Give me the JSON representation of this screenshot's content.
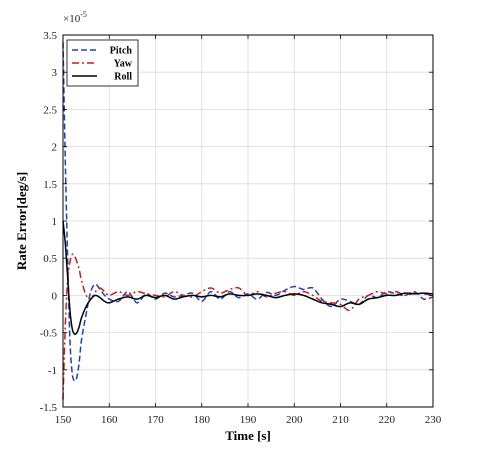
{
  "chart_data": {
    "type": "line",
    "xlabel": "Time [s]",
    "ylabel": "Rate Error[deg/s]",
    "xlim": [
      150,
      230
    ],
    "ylim": [
      -1.5,
      3.5
    ],
    "y_scale_exponent": "×10",
    "y_scale_power": "-5",
    "xticks": [
      "150",
      "160",
      "170",
      "180",
      "190",
      "200",
      "210",
      "220",
      "230"
    ],
    "yticks": [
      "-1.5",
      "-1",
      "-0.5",
      "0",
      "0.5",
      "1",
      "1.5",
      "2",
      "2.5",
      "3",
      "3.5"
    ],
    "xtick_values": [
      150,
      160,
      170,
      180,
      190,
      200,
      210,
      220,
      230
    ],
    "ytick_values": [
      -1.5,
      -1,
      -0.5,
      0,
      0.5,
      1,
      1.5,
      2,
      2.5,
      3,
      3.5
    ],
    "grid": true,
    "legend_position": "top-left",
    "series": [
      {
        "name": "Pitch",
        "color": "#1f3fbf",
        "dash": "dashed",
        "x": [
          150,
          150.5,
          151,
          151.5,
          152,
          152.5,
          153,
          153.5,
          154,
          155,
          156,
          157,
          158,
          159,
          160,
          162,
          164,
          166,
          168,
          170,
          172,
          174,
          176,
          178,
          180,
          182,
          184,
          186,
          188,
          190,
          192,
          194,
          196,
          198,
          200,
          202,
          204,
          206,
          208,
          210,
          212,
          214,
          216,
          218,
          220,
          222,
          224,
          226,
          228,
          230
        ],
        "y": [
          3.4,
          1.8,
          0.5,
          -0.6,
          -1.05,
          -1.15,
          -1.1,
          -0.9,
          -0.6,
          -0.25,
          0.05,
          0.15,
          0.08,
          0.0,
          -0.05,
          -0.08,
          0.05,
          -0.1,
          0.02,
          -0.05,
          0.03,
          -0.02,
          0.0,
          0.03,
          -0.08,
          0.05,
          -0.05,
          0.05,
          -0.03,
          0.02,
          -0.05,
          0.04,
          0.0,
          0.07,
          0.12,
          0.08,
          0.1,
          -0.05,
          -0.15,
          -0.05,
          -0.08,
          -0.12,
          0.0,
          -0.03,
          0.05,
          0.02,
          0.0,
          0.05,
          -0.05,
          -0.02
        ]
      },
      {
        "name": "Yaw",
        "color": "#c81e1e",
        "dash": "dashdot",
        "x": [
          150,
          150.5,
          151,
          151.5,
          152,
          152.5,
          153,
          153.5,
          154,
          155,
          156,
          157,
          158,
          159,
          160,
          162,
          164,
          166,
          168,
          170,
          172,
          174,
          176,
          178,
          180,
          182,
          184,
          186,
          188,
          190,
          192,
          194,
          196,
          198,
          200,
          202,
          204,
          206,
          208,
          210,
          212,
          214,
          216,
          218,
          220,
          222,
          224,
          226,
          228,
          230
        ],
        "y": [
          -1.4,
          -0.4,
          0.2,
          0.45,
          0.55,
          0.53,
          0.45,
          0.35,
          0.2,
          0.0,
          -0.05,
          0.05,
          0.1,
          0.05,
          0.0,
          0.05,
          0.0,
          0.05,
          0.02,
          0.0,
          -0.02,
          0.05,
          0.0,
          -0.02,
          0.05,
          0.1,
          0.03,
          0.08,
          0.1,
          0.0,
          0.05,
          -0.02,
          0.03,
          0.05,
          0.0,
          0.05,
          0.0,
          -0.08,
          -0.1,
          -0.12,
          -0.2,
          -0.05,
          0.0,
          0.05,
          0.02,
          0.05,
          0.0,
          0.03,
          0.02,
          0.0
        ]
      },
      {
        "name": "Roll",
        "color": "#000000",
        "dash": "solid",
        "x": [
          150,
          150.5,
          151,
          151.5,
          152,
          152.5,
          153,
          153.5,
          154,
          155,
          156,
          157,
          158,
          159,
          160,
          162,
          164,
          166,
          168,
          170,
          172,
          174,
          176,
          178,
          180,
          182,
          184,
          186,
          188,
          190,
          192,
          194,
          196,
          198,
          200,
          202,
          204,
          206,
          208,
          210,
          212,
          214,
          216,
          218,
          220,
          222,
          224,
          226,
          228,
          230
        ],
        "y": [
          1.0,
          0.7,
          0.25,
          -0.2,
          -0.45,
          -0.52,
          -0.5,
          -0.42,
          -0.3,
          -0.15,
          -0.05,
          0.0,
          -0.03,
          -0.08,
          -0.1,
          -0.05,
          -0.02,
          -0.05,
          0.0,
          -0.03,
          0.0,
          -0.05,
          -0.02,
          0.0,
          -0.02,
          0.0,
          -0.02,
          0.02,
          0.0,
          0.0,
          0.02,
          0.0,
          -0.03,
          0.0,
          0.02,
          0.0,
          -0.05,
          -0.1,
          -0.12,
          -0.15,
          -0.1,
          -0.12,
          -0.05,
          -0.03,
          0.0,
          0.0,
          0.03,
          0.02,
          0.03,
          0.02
        ]
      }
    ]
  }
}
